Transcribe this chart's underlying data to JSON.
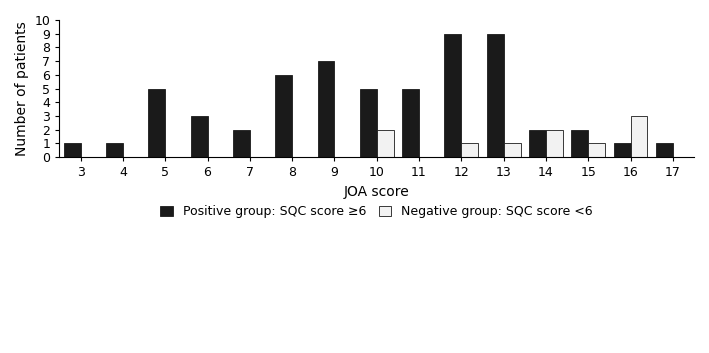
{
  "joa_scores": [
    3,
    4,
    5,
    6,
    7,
    8,
    9,
    10,
    11,
    12,
    13,
    14,
    15,
    16,
    17
  ],
  "positive_group": [
    1,
    1,
    5,
    3,
    2,
    6,
    7,
    5,
    5,
    9,
    9,
    2,
    2,
    1,
    1
  ],
  "negative_group": [
    0,
    0,
    0,
    0,
    0,
    0,
    0,
    2,
    0,
    1,
    1,
    2,
    1,
    3,
    0
  ],
  "positive_color": "#1a1a1a",
  "negative_color": "#f2f2f2",
  "positive_edgecolor": "#1a1a1a",
  "negative_edgecolor": "#1a1a1a",
  "xlabel": "JOA score",
  "ylabel": "Number of patients",
  "ylim": [
    0,
    10
  ],
  "yticks": [
    0,
    1,
    2,
    3,
    4,
    5,
    6,
    7,
    8,
    9,
    10
  ],
  "xticks": [
    3,
    4,
    5,
    6,
    7,
    8,
    9,
    10,
    11,
    12,
    13,
    14,
    15,
    16,
    17
  ],
  "bar_width": 0.4,
  "positive_label": "Positive group: SQC score ≥6",
  "negative_label": "Negative group: SQC score <6",
  "background_color": "#ffffff",
  "label_fontsize": 10,
  "tick_fontsize": 9,
  "legend_fontsize": 9
}
